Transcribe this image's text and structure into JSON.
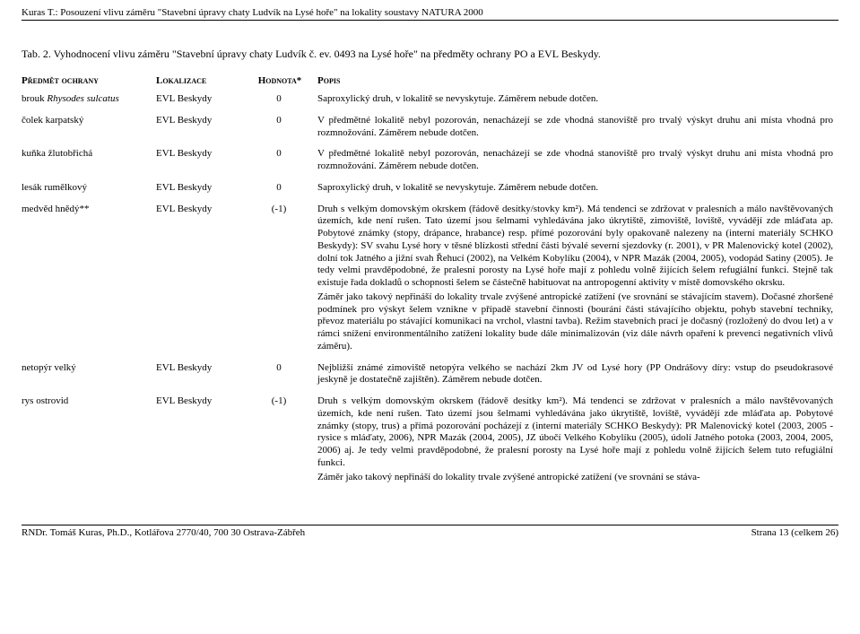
{
  "header": "Kuras T.: Posouzení vlivu záměru \"Stavební úpravy chaty Ludvík na Lysé hoře\" na lokality soustavy NATURA 2000",
  "tab_title": "Tab. 2.  Vyhodnocení vlivu záměru \"Stavební úpravy chaty Ludvík č. ev. 0493 na Lysé hoře\" na předměty ochrany PO a EVL Beskydy.",
  "columns": {
    "predmet": "Předmět ochrany",
    "lokalizace": "Lokalizace",
    "hodnota": "Hodnota*",
    "popis": "Popis"
  },
  "rows": [
    {
      "predmet_pre": "brouk ",
      "predmet_it": "Rhysodes sulcatus",
      "lok": "EVL Beskydy",
      "hod": "0",
      "popis": [
        "Saproxylický druh, v lokalitě se nevyskytuje. Záměrem nebude dotčen."
      ]
    },
    {
      "predmet_pre": "čolek karpatský",
      "predmet_it": "",
      "lok": "EVL Beskydy",
      "hod": "0",
      "popis": [
        "V předmětné lokalitě nebyl pozorován, nenacházejí se zde vhodná stanoviště pro trvalý výskyt druhu ani místa vhodná pro rozmnožování. Záměrem nebude dotčen."
      ]
    },
    {
      "predmet_pre": "kuňka žlutobřichá",
      "predmet_it": "",
      "lok": "EVL Beskydy",
      "hod": "0",
      "popis": [
        "V předmětné lokalitě nebyl pozorován, nenacházejí se zde vhodná stanoviště pro trvalý výskyt druhu ani místa vhodná pro rozmnožování. Záměrem nebude dotčen."
      ]
    },
    {
      "predmet_pre": "lesák rumělkový",
      "predmet_it": "",
      "lok": "EVL Beskydy",
      "hod": "0",
      "popis": [
        "Saproxylický druh, v lokalitě se nevyskytuje. Záměrem nebude dotčen."
      ]
    },
    {
      "predmet_pre": "medvěd hnědý**",
      "predmet_it": "",
      "lok": "EVL Beskydy",
      "hod": "(-1)",
      "popis": [
        "Druh s velkým domovským okrskem (řádově desítky/stovky km²). Má tendenci se zdržovat v pralesních a málo navštěvovaných územích, kde není rušen. Tato území jsou šelmami vyhledávána jako úkrytiště, zimoviště, loviště, vyvádějí zde mláďata ap. Pobytové známky (stopy, drápance, hrabance) resp. přímé pozorování byly opakovaně nalezeny na (interní materiály SCHKO Beskydy): SV svahu Lysé hory v těsné blízkosti střední části bývalé severní sjezdovky (r. 2001), v PR Malenovický kotel (2002), dolní tok Jatného a jižní svah Řehucí (2002), na Velkém Kobylíku (2004), v NPR Mazák (2004, 2005), vodopád Satiny (2005). Je tedy velmi pravděpodobné, že pralesní porosty na Lysé hoře mají z pohledu volně žijících šelem refugiální funkci. Stejně tak existuje řada dokladů o schopnosti šelem se částečně habituovat na antropogenní aktivity v místě domovského okrsku.",
        "Záměr jako takový nepřináší do lokality trvale zvýšené antropické zatížení (ve srovnání se stávajícím stavem). Dočasné zhoršené podmínek pro výskyt šelem vznikne v případě stavební činnosti (bourání části stávajícího objektu, pohyb stavební techniky, převoz materiálu po stávající komunikaci na vrchol, vlastní tavba). Režim stavebních prací je dočasný (rozložený do dvou let) a v rámci snížení environmentálního zatížení lokality bude dále minimalizován (viz dále návrh opaření k prevenci negativních vlivů záměru)."
      ]
    },
    {
      "predmet_pre": "netopýr velký",
      "predmet_it": "",
      "lok": "EVL Beskydy",
      "hod": "0",
      "popis": [
        "Nejbližší známé zimoviště netopýra velkého se nachází 2km JV od Lysé hory (PP Ondrášovy díry: vstup do pseudokrasové jeskyně je dostatečně zajištěn). Záměrem nebude dotčen."
      ]
    },
    {
      "predmet_pre": "rys ostrovid",
      "predmet_it": "",
      "lok": "EVL Beskydy",
      "hod": "(-1)",
      "popis": [
        "Druh s velkým domovským okrskem (řádově desítky km²). Má tendenci se zdržovat v pralesních a málo navštěvovaných územích, kde není rušen. Tato území jsou šelmami vyhledávána jako úkrytiště, loviště, vyvádějí zde mláďata ap. Pobytové známky (stopy, trus) a přímá pozorování pocházejí z (interní materiály SCHKO Beskydy): PR Malenovický kotel (2003, 2005 - rysice s mláďaty, 2006), NPR Mazák (2004, 2005), JZ úbočí Velkého Kobylíku (2005), údolí Jatného potoka (2003, 2004, 2005, 2006) aj. Je tedy velmi pravděpodobné, že pralesní porosty na Lysé hoře mají z pohledu volně žijících šelem tuto refugiální funkci.",
        "Záměr jako takový nepřináší do lokality trvale zvýšené antropické zatížení (ve srovnání se stáva-"
      ]
    }
  ],
  "footer": {
    "left": "RNDr. Tomáš Kuras, Ph.D., Kotlářova 2770/40, 700 30 Ostrava-Zábřeh",
    "right": "Strana 13 (celkem 26)"
  }
}
